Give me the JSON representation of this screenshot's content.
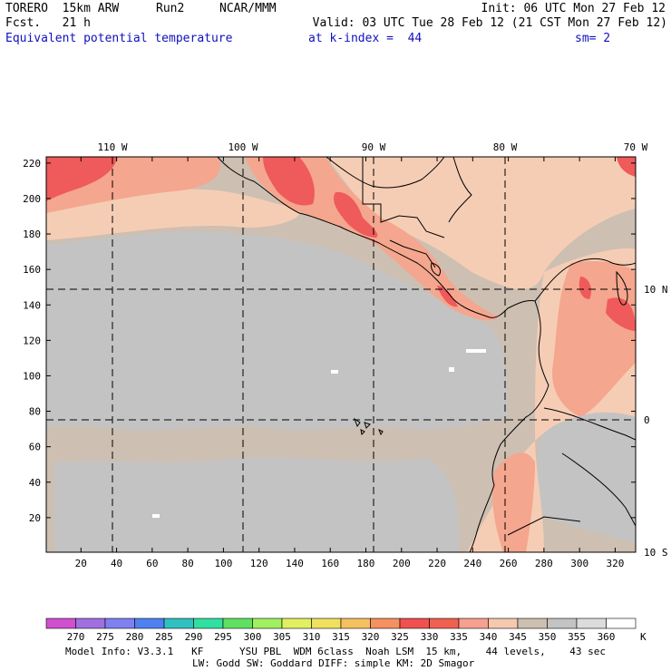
{
  "header": {
    "model": "TORERO  15km ARW",
    "run": "Run2",
    "org": "NCAR/MMM",
    "init": "Init: 06 UTC Mon 27 Feb 12",
    "fcst": "Fcst.   21 h",
    "valid": "Valid: 03 UTC Tue 28 Feb 12 (21 CST Mon 27 Feb 12)",
    "field": "Equivalent potential temperature",
    "level": "at k-index =  44",
    "smoothing": "sm= 2"
  },
  "map": {
    "lon_labels": [
      "110 W",
      "100 W",
      "90 W",
      "80 W",
      "70 W"
    ],
    "lat_labels": [
      "10 N",
      "0",
      "10 S"
    ],
    "y_ticks": [
      "20",
      "40",
      "60",
      "80",
      "100",
      "120",
      "140",
      "160",
      "180",
      "200",
      "220"
    ],
    "x_ticks": [
      "20",
      "40",
      "60",
      "80",
      "100",
      "120",
      "140",
      "160",
      "180",
      "200",
      "220",
      "240",
      "260",
      "280",
      "300",
      "320"
    ],
    "colors": {
      "ocean": "#c3c3c3",
      "tan": "#cdbfb2",
      "peach": "#f5cdb5",
      "salmon": "#f5a68e",
      "red": "#ef5a5a",
      "coast": "#000000"
    }
  },
  "colorbar": {
    "labels": [
      "270",
      "275",
      "280",
      "285",
      "290",
      "295",
      "300",
      "305",
      "310",
      "315",
      "320",
      "325",
      "330",
      "335",
      "340",
      "345",
      "350",
      "355",
      "360"
    ],
    "unit": "K",
    "colors": [
      "#d050d0",
      "#a070e0",
      "#8080f0",
      "#5080f0",
      "#30c0c0",
      "#30e0a0",
      "#60e060",
      "#a0f060",
      "#e0f060",
      "#f0e060",
      "#f5c060",
      "#f59060",
      "#f05050",
      "#f06050",
      "#f5a090",
      "#f5c8b0",
      "#cdbfb2",
      "#c3c3c3",
      "#dcdcdc",
      "#ffffff"
    ]
  },
  "footer": {
    "line1": "Model Info: V3.3.1   KF      YSU PBL  WDM 6class  Noah LSM  15 km,    44 levels,    43 sec",
    "line2": "LW: Godd SW: Goddard DIFF: simple KM: 2D Smagor"
  }
}
